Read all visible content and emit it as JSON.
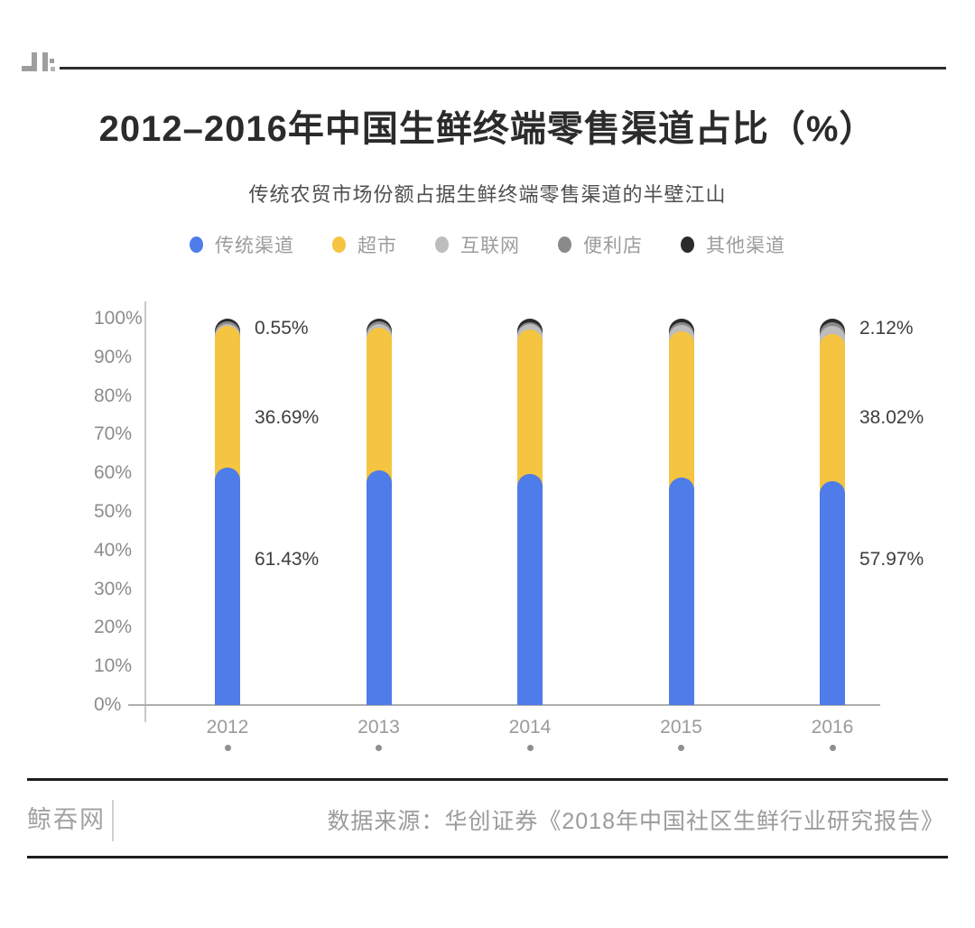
{
  "header": {
    "logo_icon": "pixel-brand-mark",
    "title": "2012–2016年中国生鲜终端零售渠道占比（%）",
    "subtitle": "传统农贸市场份额占据生鲜终端零售渠道的半壁江山"
  },
  "legend": [
    {
      "label": "传统渠道",
      "color": "#4E7CE8"
    },
    {
      "label": "超市",
      "color": "#F5C440"
    },
    {
      "label": "互联网",
      "color": "#BDBDBD"
    },
    {
      "label": "便利店",
      "color": "#8A8A8A"
    },
    {
      "label": "其他渠道",
      "color": "#2B2B2B"
    }
  ],
  "chart_data": {
    "type": "bar",
    "stacked": true,
    "title": "2012–2016年中国生鲜终端零售渠道占比（%）",
    "subtitle": "传统农贸市场份额占据生鲜终端零售渠道的半壁江山",
    "categories": [
      "2012",
      "2013",
      "2014",
      "2015",
      "2016"
    ],
    "series": [
      {
        "name": "传统渠道",
        "color": "#4E7CE8",
        "values": [
          61.43,
          60.76,
          59.87,
          58.96,
          57.97
        ]
      },
      {
        "name": "超市",
        "color": "#F5C440",
        "values": [
          36.69,
          37.0,
          37.4,
          37.8,
          38.02
        ]
      },
      {
        "name": "互联网",
        "color": "#BDBDBD",
        "values": [
          0.55,
          0.9,
          1.3,
          1.7,
          2.12
        ]
      },
      {
        "name": "便利店",
        "color": "#8A8A8A",
        "values": [
          0.55,
          0.55,
          0.6,
          0.65,
          0.9
        ]
      },
      {
        "name": "其他渠道",
        "color": "#2B2B2B",
        "values": [
          0.78,
          0.79,
          0.83,
          0.89,
          0.99
        ]
      }
    ],
    "ylim": [
      0,
      100
    ],
    "yticks": [
      "0%",
      "10%",
      "20%",
      "30%",
      "40%",
      "50%",
      "60%",
      "70%",
      "80%",
      "90%",
      "100%"
    ],
    "legend_position": "top",
    "grid": false,
    "annotations": [
      {
        "text": "0.55%",
        "bar": 0,
        "y": 97.5
      },
      {
        "text": "36.69%",
        "bar": 0,
        "y": 74.3
      },
      {
        "text": "61.43%",
        "bar": 0,
        "y": 37.6
      },
      {
        "text": "2.12%",
        "bar": 4,
        "y": 97.5
      },
      {
        "text": "38.02%",
        "bar": 4,
        "y": 74.3
      },
      {
        "text": "57.97%",
        "bar": 4,
        "y": 37.6
      }
    ]
  },
  "footer": {
    "brand": "鲸吞网",
    "source": "数据来源：华创证券《2018年中国社区生鲜行业研究报告》"
  }
}
